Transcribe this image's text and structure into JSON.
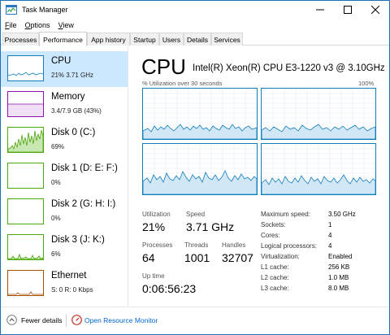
{
  "window": {
    "title": "Task Manager"
  },
  "menu": [
    {
      "label": "File"
    },
    {
      "label": "Options"
    },
    {
      "label": "View"
    }
  ],
  "tabs": [
    {
      "label": "Processes",
      "active": false
    },
    {
      "label": "Performance",
      "active": true
    },
    {
      "label": "App history",
      "active": false
    },
    {
      "label": "Startup",
      "active": false
    },
    {
      "label": "Users",
      "active": false
    },
    {
      "label": "Details",
      "active": false
    },
    {
      "label": "Services",
      "active": false
    }
  ],
  "sidebar": {
    "items": [
      {
        "name": "CPU",
        "sub": "21% 3.71 GHz",
        "color": "#117dbb",
        "selected": true
      },
      {
        "name": "Memory",
        "sub": "3.4/7.9 GB (43%)",
        "color": "#8b12ae",
        "selected": false
      },
      {
        "name": "Disk 0 (C:)",
        "sub": "69%",
        "color": "#4da60c",
        "selected": false
      },
      {
        "name": "Disk 1 (D: E: F:)",
        "sub": "0%",
        "color": "#4da60c",
        "selected": false
      },
      {
        "name": "Disk 2 (G: H: I:)",
        "sub": "0%",
        "color": "#4da60c",
        "selected": false
      },
      {
        "name": "Disk 3 (J: K:)",
        "sub": "6%",
        "color": "#4da60c",
        "selected": false
      },
      {
        "name": "Ethernet",
        "sub": "S: 0 R: 0 Kbps",
        "color": "#a74f01",
        "selected": false
      }
    ]
  },
  "main": {
    "title": "CPU",
    "model": "Intel(R) Xeon(R) CPU E3-1220 v3 @ 3.10GHz",
    "graph_label": "% Utilization over 30 seconds",
    "graph_max": "100%",
    "stats": {
      "utilization_label": "Utilization",
      "utilization_value": "21%",
      "speed_label": "Speed",
      "speed_value": "3.71 GHz",
      "processes_label": "Processes",
      "processes_value": "64",
      "threads_label": "Threads",
      "threads_value": "1001",
      "handles_label": "Handles",
      "handles_value": "32707",
      "uptime_label": "Up time",
      "uptime_value": "0:06:56:23"
    },
    "specs": [
      {
        "label": "Maximum speed:",
        "value": "3.50 GHz"
      },
      {
        "label": "Sockets:",
        "value": "1"
      },
      {
        "label": "Cores:",
        "value": "4"
      },
      {
        "label": "Logical processors:",
        "value": "4"
      },
      {
        "label": "Virtualization:",
        "value": "Enabled"
      },
      {
        "label": "L1 cache:",
        "value": "256 KB"
      },
      {
        "label": "L2 cache:",
        "value": "1.0 MB"
      },
      {
        "label": "L3 cache:",
        "value": "8.0 MB"
      }
    ]
  },
  "footer": {
    "fewer_details": "Fewer details",
    "open_resource_monitor": "Open Resource Monitor"
  },
  "colors": {
    "cpu": "#117dbb",
    "selected_bg": "#cce8ff",
    "link": "#0066cc"
  }
}
